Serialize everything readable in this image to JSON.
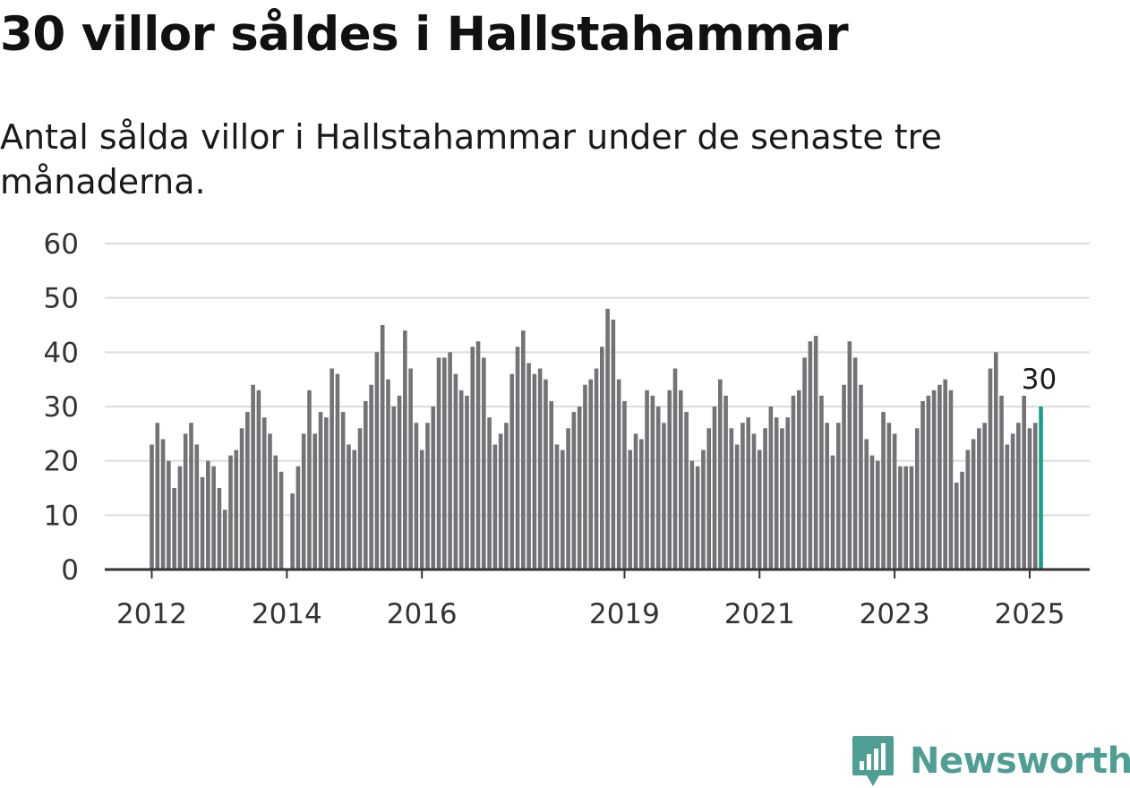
{
  "title": "30 villor såldes i Hallstahammar",
  "subtitle": "Antal sålda villor i Hallstahammar under de senaste tre månaderna.",
  "brand": {
    "name": "Newsworthy",
    "icon": "newsworthy-logo-icon",
    "color": "#4f9e94"
  },
  "chart_data": {
    "type": "bar",
    "title": "30 villor såldes i Hallstahammar",
    "subtitle": "Antal sålda villor i Hallstahammar under de senaste tre månaderna.",
    "ylim": [
      0,
      60
    ],
    "yticks": [
      0,
      10,
      20,
      30,
      40,
      50,
      60
    ],
    "grid": true,
    "x_tick_labels": [
      {
        "label": "2012",
        "date": "2012-01"
      },
      {
        "label": "2014",
        "date": "2014-01"
      },
      {
        "label": "2016",
        "date": "2016-01"
      },
      {
        "label": "2019",
        "date": "2019-01"
      },
      {
        "label": "2021",
        "date": "2021-01"
      },
      {
        "label": "2023",
        "date": "2023-01"
      },
      {
        "label": "2025",
        "date": "2025-01"
      }
    ],
    "bar_color": "#727277",
    "highlight_color": "#1b9e8f",
    "highlight_label": "30",
    "series": [
      {
        "values": [
          23,
          27,
          24,
          20,
          15,
          19,
          25,
          27,
          23,
          17,
          20,
          19,
          15,
          11,
          21,
          22,
          26,
          29,
          34,
          33,
          28,
          25,
          21,
          18,
          null,
          14,
          19,
          25,
          33,
          25,
          29,
          28,
          37,
          36,
          29,
          23,
          22,
          26,
          31,
          34,
          40,
          45,
          35,
          30,
          32,
          44,
          37,
          27,
          22,
          27,
          30,
          39,
          39,
          40,
          36,
          33,
          32,
          41,
          42,
          39,
          28,
          23,
          25,
          27,
          36,
          41,
          44,
          38,
          36,
          37,
          35,
          31,
          23,
          22,
          26,
          29,
          30,
          34,
          35,
          37,
          41,
          48,
          46,
          35,
          31,
          22,
          25,
          24,
          33,
          32,
          30,
          27,
          33,
          37,
          33,
          29,
          20,
          19,
          22,
          26,
          30,
          35,
          32,
          26,
          23,
          27,
          28,
          25,
          22,
          26,
          30,
          28,
          26,
          28,
          32,
          33,
          39,
          42,
          43,
          32,
          27,
          21,
          27,
          34,
          42,
          39,
          34,
          24,
          21,
          20,
          29,
          27,
          25,
          19,
          19,
          19,
          26,
          31,
          32,
          33,
          34,
          35,
          33,
          16,
          18,
          22,
          24,
          26,
          27,
          37,
          40,
          32,
          23,
          25,
          27,
          32,
          26,
          27,
          30
        ]
      }
    ]
  }
}
